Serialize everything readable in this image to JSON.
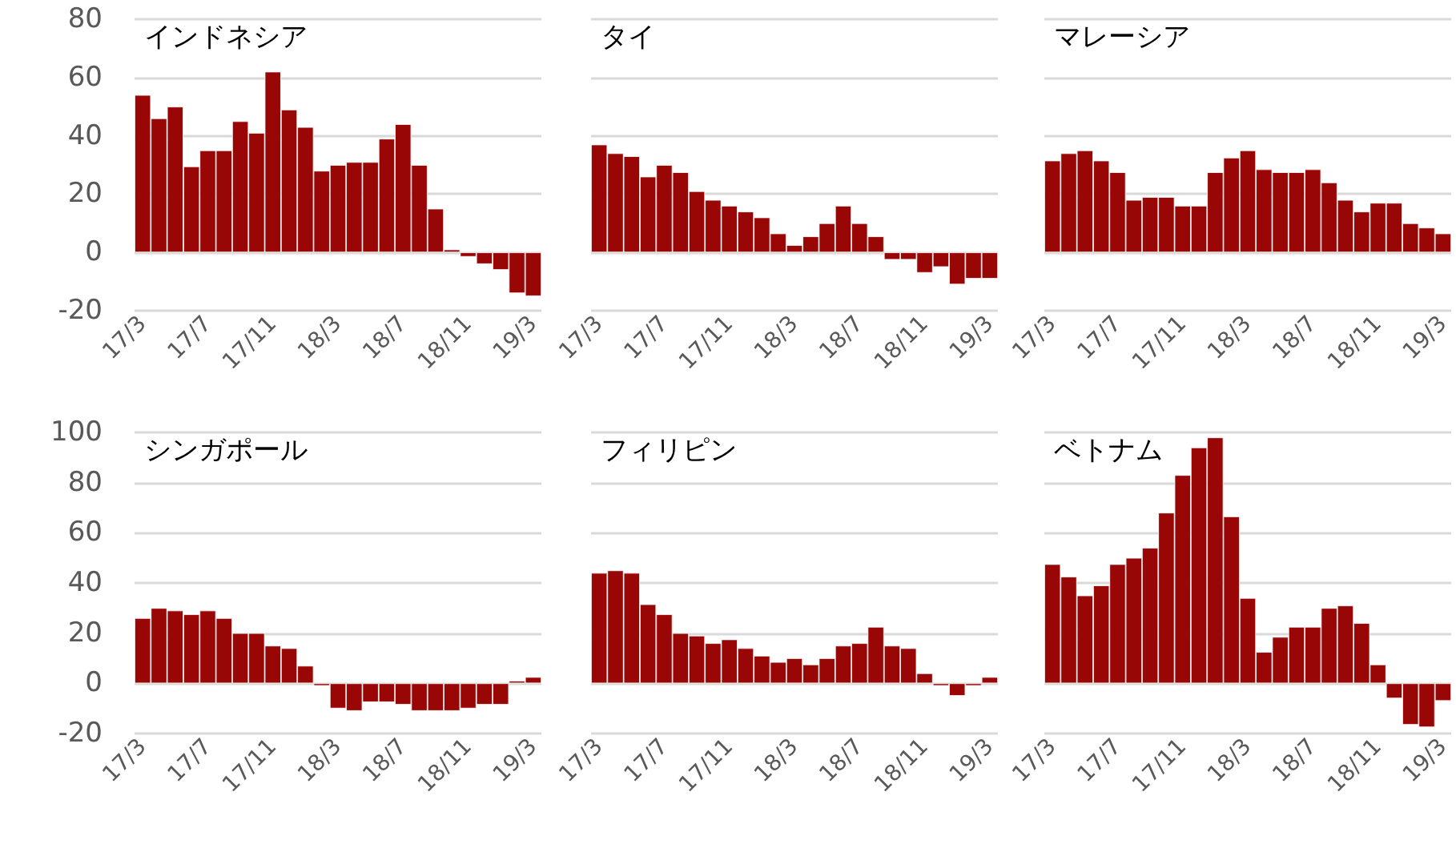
{
  "chart_data": [
    {
      "type": "bar",
      "title": "インドネシア",
      "categories": [
        "17/3",
        null,
        null,
        null,
        "17/7",
        null,
        null,
        null,
        "17/11",
        null,
        null,
        null,
        "18/3",
        null,
        null,
        null,
        "18/7",
        null,
        null,
        null,
        "18/11",
        null,
        null,
        null,
        "19/3"
      ],
      "values": [
        54,
        46,
        50,
        29.5,
        35,
        35,
        45,
        41,
        62,
        49,
        43,
        28,
        30,
        31,
        31,
        39,
        44,
        30,
        15,
        1,
        -1.5,
        -4,
        -6,
        -14,
        -15
      ],
      "color": "#990606",
      "ylim": [
        -20,
        80
      ],
      "yticks": [
        -20,
        0,
        20,
        40,
        60,
        80
      ],
      "grid": "y"
    },
    {
      "type": "bar",
      "title": "タイ",
      "categories": [
        "17/3",
        null,
        null,
        null,
        "17/7",
        null,
        null,
        null,
        "17/11",
        null,
        null,
        null,
        "18/3",
        null,
        null,
        null,
        "18/7",
        null,
        null,
        null,
        "18/11",
        null,
        null,
        null,
        "19/3"
      ],
      "values": [
        37,
        34,
        33,
        26,
        30,
        27.5,
        21,
        18,
        16,
        14,
        12,
        6.5,
        2.5,
        5.5,
        10,
        16,
        10,
        5.5,
        -2.5,
        -2.5,
        -7,
        -5,
        -11,
        -9,
        -9
      ],
      "color": "#990606",
      "ylim": [
        -20,
        80
      ],
      "yticks": [
        -20,
        0,
        20,
        40,
        60,
        80
      ],
      "grid": "y",
      "tick_labels": "x"
    },
    {
      "type": "bar",
      "title": "マレーシア",
      "categories": [
        "17/3",
        null,
        null,
        null,
        "17/7",
        null,
        null,
        null,
        "17/11",
        null,
        null,
        null,
        "18/3",
        null,
        null,
        null,
        "18/7",
        null,
        null,
        null,
        "18/11",
        null,
        null,
        null,
        "19/3"
      ],
      "values": [
        31.5,
        34,
        35,
        31.5,
        27.5,
        18,
        19,
        19,
        16,
        16,
        27.5,
        32.5,
        35,
        28.5,
        27.5,
        27.5,
        28.5,
        24,
        18,
        14,
        17,
        17,
        10,
        8.5,
        6.5
      ],
      "color": "#990606",
      "ylim": [
        -20,
        80
      ],
      "yticks": [
        -20,
        0,
        20,
        40,
        60,
        80
      ],
      "grid": "y",
      "tick_labels": "x"
    },
    {
      "type": "bar",
      "title": "シンガポール",
      "categories": [
        "17/3",
        null,
        null,
        null,
        "17/7",
        null,
        null,
        null,
        "17/11",
        null,
        null,
        null,
        "18/3",
        null,
        null,
        null,
        "18/7",
        null,
        null,
        null,
        "18/11",
        null,
        null,
        null,
        "19/3"
      ],
      "values": [
        26,
        30,
        29,
        27.5,
        29,
        26,
        20,
        20,
        15,
        14,
        7,
        -1,
        -10,
        -11,
        -7.5,
        -7.5,
        -8.5,
        -11,
        -11,
        -11,
        -10,
        -8.5,
        -8.5,
        1,
        2.5
      ],
      "color": "#990606",
      "ylim": [
        -20,
        100
      ],
      "yticks": [
        -20,
        0,
        20,
        40,
        60,
        80,
        100
      ],
      "grid": "y"
    },
    {
      "type": "bar",
      "title": "フィリピン",
      "categories": [
        "17/3",
        null,
        null,
        null,
        "17/7",
        null,
        null,
        null,
        "17/11",
        null,
        null,
        null,
        "18/3",
        null,
        null,
        null,
        "18/7",
        null,
        null,
        null,
        "18/11",
        null,
        null,
        null,
        "19/3"
      ],
      "values": [
        44,
        45,
        44,
        31.5,
        27.5,
        20,
        19,
        16,
        17.5,
        14,
        11,
        8.5,
        10,
        7.5,
        10,
        15,
        16,
        22.5,
        15,
        14,
        4,
        -1,
        -5,
        -1,
        2.5
      ],
      "color": "#990606",
      "ylim": [
        -20,
        100
      ],
      "yticks": [
        -20,
        0,
        20,
        40,
        60,
        80,
        100
      ],
      "grid": "y",
      "tick_labels": "x"
    },
    {
      "type": "bar",
      "title": "ベトナム",
      "categories": [
        "17/3",
        null,
        null,
        null,
        "17/7",
        null,
        null,
        null,
        "17/11",
        null,
        null,
        null,
        "18/3",
        null,
        null,
        null,
        "18/7",
        null,
        null,
        null,
        "18/11",
        null,
        null,
        null,
        "19/3"
      ],
      "values": [
        47.5,
        42.5,
        35,
        39,
        47.5,
        50,
        54,
        68,
        83,
        94,
        98,
        66.5,
        34,
        12.5,
        18.5,
        22.5,
        22.5,
        30,
        31,
        24,
        7.5,
        -6,
        -16.5,
        -17.5,
        -7
      ],
      "color": "#990606",
      "ylim": [
        -20,
        100
      ],
      "yticks": [
        -20,
        0,
        20,
        40,
        60,
        80,
        100
      ],
      "grid": "y",
      "tick_labels": "x"
    }
  ]
}
